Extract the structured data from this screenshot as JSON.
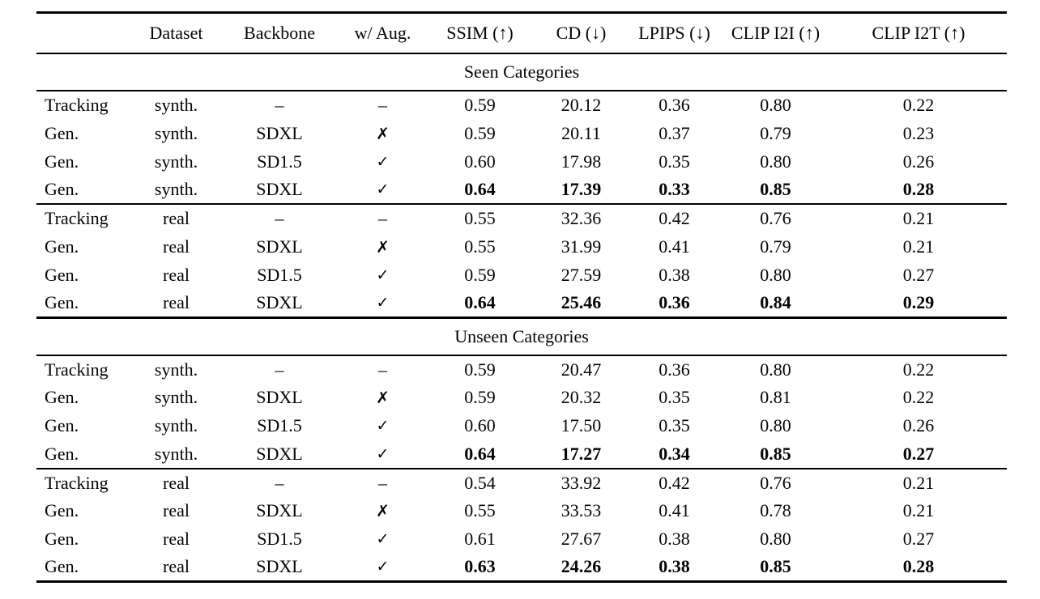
{
  "page": {
    "background_color": "#ffffff",
    "text_color": "#050505",
    "rule_color": "#000000"
  },
  "table": {
    "columns": [
      "",
      "Dataset",
      "Backbone",
      "w/ Aug.",
      "SSIM (↑)",
      "CD (↓)",
      "LPIPS (↓)",
      "CLIP I2I (↑)",
      "CLIP I2T (↑)"
    ],
    "sections": [
      {
        "title": "Seen Categories",
        "groups": [
          {
            "rows": [
              {
                "method": "Tracking",
                "dataset": "synth.",
                "backbone": "–",
                "aug": "–",
                "ssim": "0.59",
                "cd": "20.12",
                "lpips": "0.36",
                "clip_i2i": "0.80",
                "clip_i2t": "0.22"
              },
              {
                "method": "Gen.",
                "dataset": "synth.",
                "backbone": "SDXL",
                "aug": "✗",
                "ssim": "0.59",
                "cd": "20.11",
                "lpips": "0.37",
                "clip_i2i": "0.79",
                "clip_i2t": "0.23"
              },
              {
                "method": "Gen.",
                "dataset": "synth.",
                "backbone": "SD1.5",
                "aug": "✓",
                "ssim": "0.60",
                "cd": "17.98",
                "lpips": "0.35",
                "clip_i2i": "0.80",
                "clip_i2t": "0.26"
              },
              {
                "method": "Gen.",
                "dataset": "synth.",
                "backbone": "SDXL",
                "aug": "✓",
                "ssim": "0.64",
                "cd": "17.39",
                "lpips": "0.33",
                "clip_i2i": "0.85",
                "clip_i2t": "0.28"
              }
            ]
          },
          {
            "rows": [
              {
                "method": "Tracking",
                "dataset": "real",
                "backbone": "–",
                "aug": "–",
                "ssim": "0.55",
                "cd": "32.36",
                "lpips": "0.42",
                "clip_i2i": "0.76",
                "clip_i2t": "0.21"
              },
              {
                "method": "Gen.",
                "dataset": "real",
                "backbone": "SDXL",
                "aug": "✗",
                "ssim": "0.55",
                "cd": "31.99",
                "lpips": "0.41",
                "clip_i2i": "0.79",
                "clip_i2t": "0.21"
              },
              {
                "method": "Gen.",
                "dataset": "real",
                "backbone": "SD1.5",
                "aug": "✓",
                "ssim": "0.59",
                "cd": "27.59",
                "lpips": "0.38",
                "clip_i2i": "0.80",
                "clip_i2t": "0.27"
              },
              {
                "method": "Gen.",
                "dataset": "real",
                "backbone": "SDXL",
                "aug": "✓",
                "ssim": "0.64",
                "cd": "25.46",
                "lpips": "0.36",
                "clip_i2i": "0.84",
                "clip_i2t": "0.29"
              }
            ]
          }
        ]
      },
      {
        "title": "Unseen Categories",
        "groups": [
          {
            "rows": [
              {
                "method": "Tracking",
                "dataset": "synth.",
                "backbone": "–",
                "aug": "–",
                "ssim": "0.59",
                "cd": "20.47",
                "lpips": "0.36",
                "clip_i2i": "0.80",
                "clip_i2t": "0.22"
              },
              {
                "method": "Gen.",
                "dataset": "synth.",
                "backbone": "SDXL",
                "aug": "✗",
                "ssim": "0.59",
                "cd": "20.32",
                "lpips": "0.35",
                "clip_i2i": "0.81",
                "clip_i2t": "0.22"
              },
              {
                "method": "Gen.",
                "dataset": "synth.",
                "backbone": "SD1.5",
                "aug": "✓",
                "ssim": "0.60",
                "cd": "17.50",
                "lpips": "0.35",
                "clip_i2i": "0.80",
                "clip_i2t": "0.26"
              },
              {
                "method": "Gen.",
                "dataset": "synth.",
                "backbone": "SDXL",
                "aug": "✓",
                "ssim": "0.64",
                "cd": "17.27",
                "lpips": "0.34",
                "clip_i2i": "0.85",
                "clip_i2t": "0.27"
              }
            ]
          },
          {
            "rows": [
              {
                "method": "Tracking",
                "dataset": "real",
                "backbone": "–",
                "aug": "–",
                "ssim": "0.54",
                "cd": "33.92",
                "lpips": "0.42",
                "clip_i2i": "0.76",
                "clip_i2t": "0.21"
              },
              {
                "method": "Gen.",
                "dataset": "real",
                "backbone": "SDXL",
                "aug": "✗",
                "ssim": "0.55",
                "cd": "33.53",
                "lpips": "0.41",
                "clip_i2i": "0.78",
                "clip_i2t": "0.21"
              },
              {
                "method": "Gen.",
                "dataset": "real",
                "backbone": "SD1.5",
                "aug": "✓",
                "ssim": "0.61",
                "cd": "27.67",
                "lpips": "0.38",
                "clip_i2i": "0.80",
                "clip_i2t": "0.27"
              },
              {
                "method": "Gen.",
                "dataset": "real",
                "backbone": "SDXL",
                "aug": "✓",
                "ssim": "0.63",
                "cd": "24.26",
                "lpips": "0.38",
                "clip_i2i": "0.85",
                "clip_i2t": "0.28"
              }
            ]
          }
        ]
      }
    ]
  }
}
